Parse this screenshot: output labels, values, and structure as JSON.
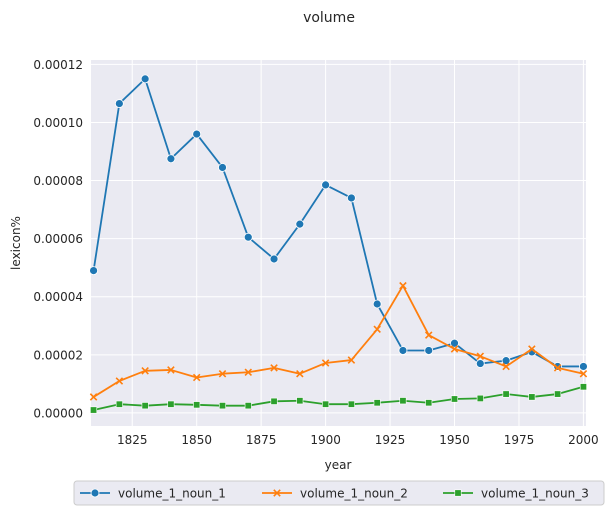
{
  "chart_data": {
    "type": "line",
    "title": "volume",
    "xlabel": "year",
    "ylabel": "lexicon%",
    "xlim": [
      1809,
      2001
    ],
    "ylim": [
      -4.5e-06,
      0.0001215
    ],
    "x_ticks": [
      1825,
      1850,
      1875,
      1900,
      1925,
      1950,
      1975,
      2000
    ],
    "x_tick_labels": [
      "1825",
      "1850",
      "1875",
      "1900",
      "1925",
      "1950",
      "1975",
      "2000"
    ],
    "y_ticks": [
      0,
      2e-05,
      4e-05,
      6e-05,
      8e-05,
      0.0001,
      0.00012
    ],
    "y_tick_labels": [
      "0.00000",
      "0.00002",
      "0.00004",
      "0.00006",
      "0.00008",
      "0.00010",
      "0.00012"
    ],
    "grid": true,
    "legend_placement": "bottom-center",
    "x": [
      1810,
      1820,
      1830,
      1840,
      1850,
      1860,
      1870,
      1880,
      1890,
      1900,
      1910,
      1920,
      1930,
      1940,
      1950,
      1960,
      1970,
      1980,
      1990,
      2000
    ],
    "series": [
      {
        "name": "volume_1_noun_1",
        "color": "#1f77b4",
        "marker": "circle",
        "values": [
          4.9e-05,
          0.0001065,
          0.000115,
          8.75e-05,
          9.6e-05,
          8.45e-05,
          6.05e-05,
          5.3e-05,
          6.5e-05,
          7.85e-05,
          7.4e-05,
          3.75e-05,
          2.15e-05,
          2.15e-05,
          2.4e-05,
          1.7e-05,
          1.8e-05,
          2.1e-05,
          1.6e-05,
          1.6e-05
        ]
      },
      {
        "name": "volume_1_noun_2",
        "color": "#ff7f0e",
        "marker": "x",
        "values": [
          5.5e-06,
          1.1e-05,
          1.45e-05,
          1.48e-05,
          1.22e-05,
          1.35e-05,
          1.4e-05,
          1.55e-05,
          1.35e-05,
          1.72e-05,
          1.82e-05,
          2.88e-05,
          4.38e-05,
          2.68e-05,
          2.2e-05,
          1.95e-05,
          1.6e-05,
          2.2e-05,
          1.55e-05,
          1.35e-05
        ]
      },
      {
        "name": "volume_1_noun_3",
        "color": "#2ca02c",
        "marker": "square",
        "values": [
          1e-06,
          3e-06,
          2.5e-06,
          3e-06,
          2.8e-06,
          2.5e-06,
          2.5e-06,
          4e-06,
          4.2e-06,
          3e-06,
          3e-06,
          3.5e-06,
          4.2e-06,
          3.5e-06,
          4.8e-06,
          5e-06,
          6.5e-06,
          5.5e-06,
          6.5e-06,
          9e-06
        ]
      }
    ]
  }
}
